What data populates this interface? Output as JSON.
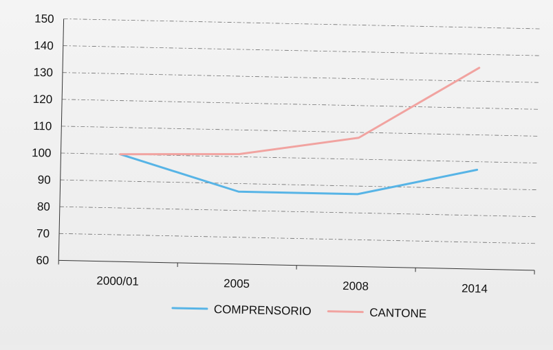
{
  "chart_data": {
    "type": "line",
    "title": "",
    "xlabel": "",
    "ylabel": "",
    "categories": [
      "2000/01",
      "2005",
      "2008",
      "2014"
    ],
    "ylim": [
      60,
      150
    ],
    "yticks": [
      60,
      70,
      80,
      90,
      100,
      110,
      120,
      130,
      140,
      150
    ],
    "grid": true,
    "legend_position": "bottom",
    "series": [
      {
        "name": "COMPRENSORIO",
        "color": "#57b4e6",
        "values": [
          100,
          87,
          87,
          97
        ]
      },
      {
        "name": "CANTONE",
        "color": "#f1a3a0",
        "values": [
          100,
          101,
          108,
          135
        ]
      }
    ]
  }
}
